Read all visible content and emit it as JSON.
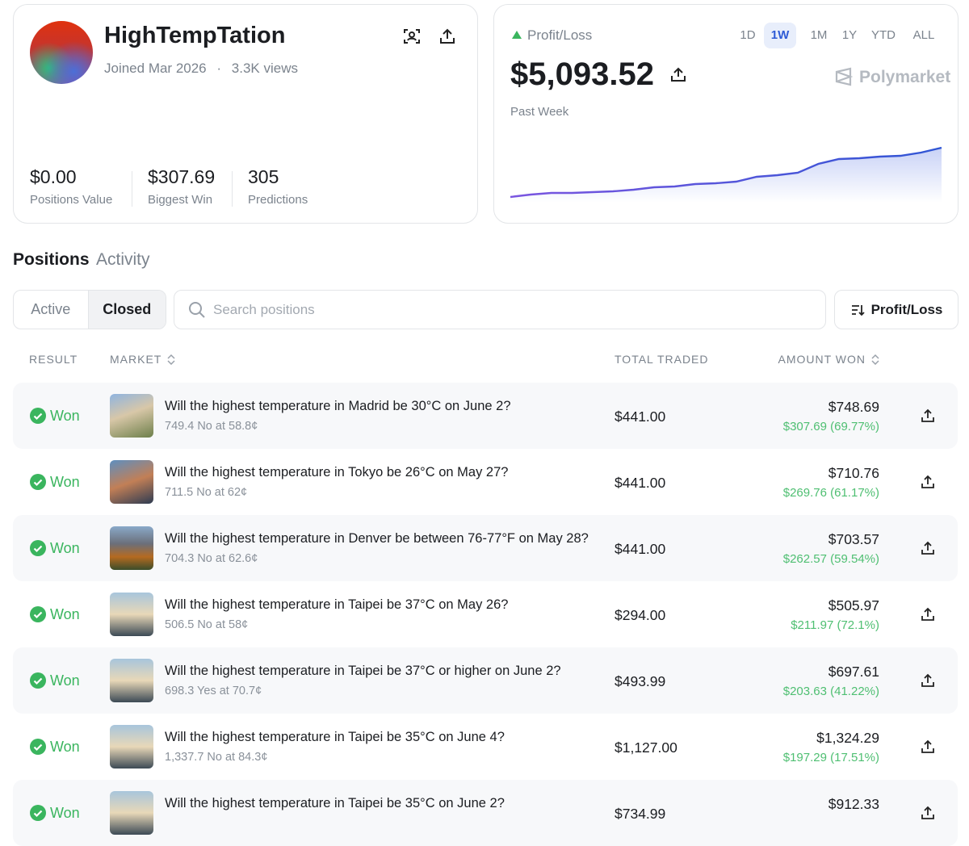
{
  "profile": {
    "name": "HighTempTation",
    "joined": "Joined Mar 2026",
    "separator": "·",
    "views": "3.3K views",
    "stats": [
      {
        "value": "$0.00",
        "label": "Positions Value"
      },
      {
        "value": "$307.69",
        "label": "Biggest Win"
      },
      {
        "value": "305",
        "label": "Predictions"
      }
    ]
  },
  "pnl": {
    "label": "Profit/Loss",
    "ranges": [
      "1D",
      "1W",
      "1M",
      "1Y",
      "YTD",
      "ALL"
    ],
    "selected": "1W",
    "amount": "$5,093.52",
    "brand": "Polymarket",
    "period": "Past Week",
    "chart": {
      "type": "line",
      "values": [
        0,
        251,
        418,
        418,
        501,
        585,
        752,
        1002,
        1086,
        1336,
        1420,
        1587,
        2088,
        2255,
        2505,
        3424,
        3925,
        4008,
        4175,
        4259,
        4593,
        5093.52
      ],
      "ylim": [
        0,
        5093.52
      ],
      "color": "#7a55e0"
    }
  },
  "tabs": [
    "Positions",
    "Activity"
  ],
  "filters": [
    "Active",
    "Closed"
  ],
  "selected_filter": "Closed",
  "search_placeholder": "Search positions",
  "sort": "Profit/Loss",
  "table": {
    "headers": [
      "RESULT",
      "MARKET",
      "TOTAL TRADED",
      "AMOUNT WON"
    ],
    "rows": [
      {
        "result": "Won",
        "title": "Will the highest temperature in Madrid be 30°C on June 2?",
        "detail": "749.4 No at 58.8¢",
        "total_traded": "$441.00",
        "amount_won": "$748.69",
        "gain": "$307.69 (69.77%)"
      },
      {
        "result": "Won",
        "title": "Will the highest temperature in Tokyo be 26°C on May 27?",
        "detail": "711.5 No at 62¢",
        "total_traded": "$441.00",
        "amount_won": "$710.76",
        "gain": "$269.76 (61.17%)"
      },
      {
        "result": "Won",
        "title": "Will the highest temperature in Denver be between 76-77°F on May 28?",
        "detail": "704.3 No at 62.6¢",
        "total_traded": "$441.00",
        "amount_won": "$703.57",
        "gain": "$262.57 (59.54%)"
      },
      {
        "result": "Won",
        "title": "Will the highest temperature in Taipei be 37°C on May 26?",
        "detail": "506.5 No at 58¢",
        "total_traded": "$294.00",
        "amount_won": "$505.97",
        "gain": "$211.97 (72.1%)"
      },
      {
        "result": "Won",
        "title": "Will the highest temperature in Taipei be 37°C or higher on June 2?",
        "detail": "698.3 Yes at 70.7¢",
        "total_traded": "$493.99",
        "amount_won": "$697.61",
        "gain": "$203.63 (41.22%)"
      },
      {
        "result": "Won",
        "title": "Will the highest temperature in Taipei be 35°C on June 4?",
        "detail": "1,337.7 No at 84.3¢",
        "total_traded": "$1,127.00",
        "amount_won": "$1,324.29",
        "gain": "$197.29 (17.51%)"
      },
      {
        "result": "Won",
        "title": "Will the highest temperature in Taipei be 35°C on June 2?",
        "total_traded": "$734.99",
        "amount_won": "$912.33"
      }
    ]
  }
}
